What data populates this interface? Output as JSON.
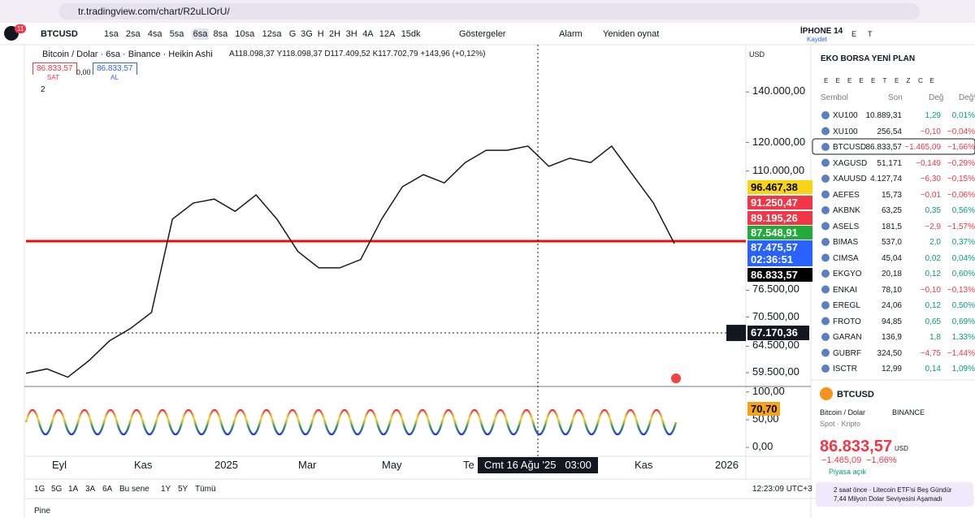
{
  "browser": {
    "url": "tr.tradingview.com/chart/R2uLIOrU/",
    "badge": "11"
  },
  "toolbar": {
    "symbol": "BTCUSD",
    "intervals": [
      "1sa",
      "2sa",
      "4sa",
      "5sa",
      "6sa",
      "8sa",
      "10sa",
      "12sa",
      "G",
      "3G",
      "H",
      "2H",
      "3H",
      "4A",
      "12A",
      "15dk"
    ],
    "indicators": "Göstergeler",
    "alert": "Alarm",
    "replay": "Yeniden oynat",
    "layout_name": "İPHONE 14",
    "save": "Kaydet",
    "letters": [
      "E",
      "T"
    ]
  },
  "legend": {
    "title": "Bitcoin / Dolar · 6sa · Binance · Heikin Ashi",
    "ohlc": "A118.098,37 Y118.098,37 D117.409,52 K117.702,79 +143,96 (+0,12%)",
    "sell_price": "86.833,57",
    "sell": "SAT",
    "spread": "0,00",
    "buy_price": "86.833,57",
    "buy": "AL",
    "count": "2"
  },
  "chart_data": {
    "type": "line",
    "log_scale": true,
    "currency": "USD",
    "color": "#1a1a1a",
    "ylim": [
      57200,
      161700
    ],
    "yticks": [
      {
        "value": 140000,
        "label": "140.000,00"
      },
      {
        "value": 120000,
        "label": "120.000,00"
      },
      {
        "value": 110000,
        "label": "110.000,00"
      },
      {
        "value": 76500,
        "label": "76.500,00"
      },
      {
        "value": 70500,
        "label": "70.500,00"
      },
      {
        "value": 64500,
        "label": "64.500,00"
      },
      {
        "value": 59500,
        "label": "59.500,00"
      }
    ],
    "values": [
      59400,
      60200,
      58700,
      61700,
      65600,
      68100,
      71500,
      95000,
      99800,
      101000,
      97300,
      102300,
      95000,
      86100,
      81900,
      81900,
      84000,
      95000,
      104900,
      108800,
      106100,
      112900,
      117200,
      117200,
      118700,
      111600,
      114400,
      112900,
      118700,
      108800,
      99800,
      88200
    ],
    "price_labels": [
      {
        "label": "96.467,38",
        "color": "#f7d514"
      },
      {
        "label": "91.250,47",
        "color": "#f23645"
      },
      {
        "label": "89.195,26",
        "color": "#f23645"
      },
      {
        "label": "87.548,91",
        "color": "#22ab3a"
      },
      {
        "label": "87.475,57",
        "color": "#2962ff"
      },
      {
        "label": "02:36:51",
        "color": "#2962ff"
      },
      {
        "label": "86.833,57",
        "color": "#000000"
      }
    ],
    "crosshair_price": {
      "value": 67170.36,
      "label": "67.170,36"
    },
    "x_labels": [
      "Eyl",
      "Kas",
      "2025",
      "Mar",
      "May",
      "Te",
      "Kas",
      "2026"
    ],
    "crosshair_time": "Cmt 16 Ağu '25   03:00",
    "indicator": {
      "ylim": [
        -16,
        110
      ],
      "yticks": [
        {
          "value": 100,
          "label": "100,00"
        },
        {
          "value": 50,
          "label": "50,00"
        },
        {
          "value": 0,
          "label": "0,00"
        }
      ],
      "value": 70.7,
      "value_label": "70,70"
    }
  },
  "bottom": {
    "ranges": [
      "1G",
      "5G",
      "1A",
      "3A",
      "6A",
      "Bu sene",
      "1Y",
      "5Y",
      "Tümü"
    ],
    "time": "12:23:09 UTC+3",
    "pine": "Pine"
  },
  "watchlist": {
    "title": "EKO BORSA YENİ PLAN",
    "tabs": [
      "E",
      "E",
      "E",
      "E",
      "E",
      "T",
      "E",
      "Z",
      "C",
      "E"
    ],
    "header": [
      "Sembol",
      "Son",
      "Değ",
      "Değ%"
    ],
    "rows": [
      [
        "XU100",
        "10.889,31",
        "1,29",
        "0,01%"
      ],
      [
        "XU100",
        "256,54",
        "−0,10",
        "−0,04%"
      ],
      [
        "BTCUSD",
        "86.833,57",
        "−1.465,09",
        "−1,66%"
      ],
      [
        "XAGUSD",
        "51,171",
        "−0,149",
        "−0,29%"
      ],
      [
        "XAUUSD",
        "4.127,74",
        "−6,30",
        "−0,15%"
      ],
      [
        "AEFES",
        "15,73",
        "−0,01",
        "−0,06%"
      ],
      [
        "AKBNK",
        "63,25",
        "0,35",
        "0,56%"
      ],
      [
        "ASELS",
        "181,5",
        "−2,9",
        "−1,57%"
      ],
      [
        "BIMAS",
        "537,0",
        "2,0",
        "0,37%"
      ],
      [
        "CIMSA",
        "45,04",
        "0,02",
        "0,04%"
      ],
      [
        "EKGYO",
        "20,18",
        "0,12",
        "0,60%"
      ],
      [
        "ENKAI",
        "78,10",
        "−0,10",
        "−0,13%"
      ],
      [
        "EREGL",
        "24,06",
        "0,12",
        "0,50%"
      ],
      [
        "FROTO",
        "94,85",
        "0,65",
        "0,69%"
      ],
      [
        "GARAN",
        "136,9",
        "1,8",
        "1,33%"
      ],
      [
        "GUBRF",
        "324,50",
        "−4,75",
        "−1,44%"
      ],
      [
        "ISCTR",
        "12,99",
        "0,14",
        "1,09%"
      ]
    ]
  },
  "detail": {
    "symbol": "BTCUSD",
    "name": "Bitcoin / Dolar",
    "exchange": "BINANCE",
    "kind": "Spot · Kripto",
    "price": "86.833,57",
    "currency": "USD",
    "change": "−1.465,09",
    "change_pct": "−1,66%",
    "status": "Piyasa açık",
    "news_time": "2 saat önce · Litecoin ETF'si Beş Gündür",
    "news_text": "7,44 Milyon Dolar Seviyesini Aşamadı"
  }
}
